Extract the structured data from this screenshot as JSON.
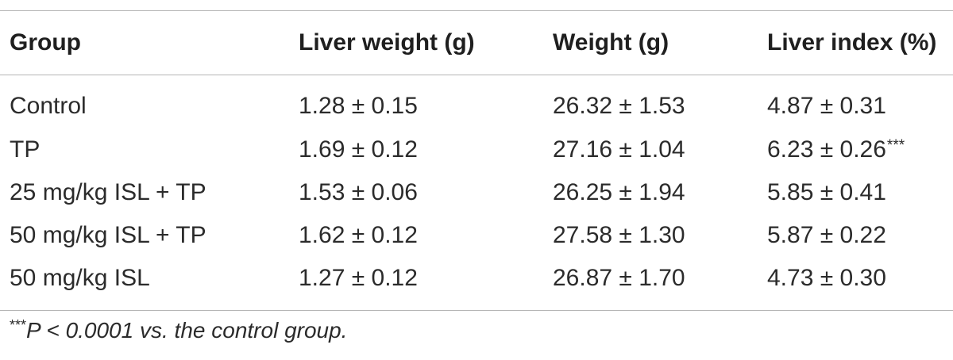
{
  "table": {
    "headers": [
      "Group",
      "Liver weight (g)",
      "Weight (g)",
      "Liver index (%)"
    ],
    "rows": [
      {
        "group": "Control",
        "liver_weight": "1.28 ± 0.15",
        "weight": "26.32 ± 1.53",
        "liver_index": "4.87 ± 0.31",
        "sig": ""
      },
      {
        "group": "TP",
        "liver_weight": "1.69 ± 0.12",
        "weight": "27.16 ± 1.04",
        "liver_index": "6.23 ± 0.26",
        "sig": "***"
      },
      {
        "group": "25 mg/kg ISL + TP",
        "liver_weight": "1.53 ± 0.06",
        "weight": "26.25 ± 1.94",
        "liver_index": "5.85 ± 0.41",
        "sig": ""
      },
      {
        "group": "50 mg/kg ISL + TP",
        "liver_weight": "1.62 ± 0.12",
        "weight": "27.58 ± 1.30",
        "liver_index": "5.87 ± 0.22",
        "sig": ""
      },
      {
        "group": "50 mg/kg ISL",
        "liver_weight": "1.27 ± 0.12",
        "weight": "26.87 ± 1.70",
        "liver_index": "4.73 ± 0.30",
        "sig": ""
      }
    ]
  },
  "footnote": {
    "marker": "***",
    "text": "P < 0.0001 vs. the control group."
  }
}
